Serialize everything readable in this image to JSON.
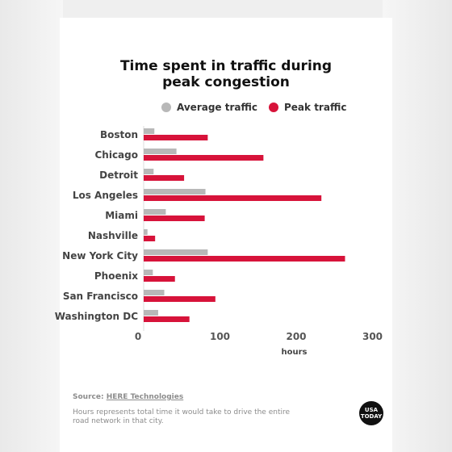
{
  "chart_data": {
    "type": "bar",
    "orientation": "horizontal",
    "title_line1": "Time spent in traffic during",
    "title_line2": "peak congestion",
    "xlabel": "hours",
    "ylabel": "",
    "categories": [
      "Boston",
      "Chicago",
      "Detroit",
      "Los Angeles",
      "Miami",
      "Nashville",
      "New York City",
      "Phoenix",
      "San Francisco",
      "Washington DC"
    ],
    "series": [
      {
        "name": "Average traffic",
        "color": "#b8b8b8",
        "values": [
          14,
          43,
          13,
          81,
          29,
          5,
          84,
          12,
          27,
          19
        ]
      },
      {
        "name": "Peak traffic",
        "color": "#d7133a",
        "values": [
          84,
          157,
          53,
          233,
          80,
          15,
          264,
          41,
          94,
          60
        ]
      }
    ],
    "xlim": [
      0,
      300
    ],
    "xticks": [
      "0",
      "100",
      "200",
      "300"
    ],
    "grid": false,
    "legend_position": "top"
  },
  "footer": {
    "source_prefix": "Source: ",
    "source_name": "HERE Technologies",
    "note": "Hours represents total time it would take to drive the entire road network in that city."
  },
  "logo": {
    "line1": "USA",
    "line2": "TODAY"
  }
}
